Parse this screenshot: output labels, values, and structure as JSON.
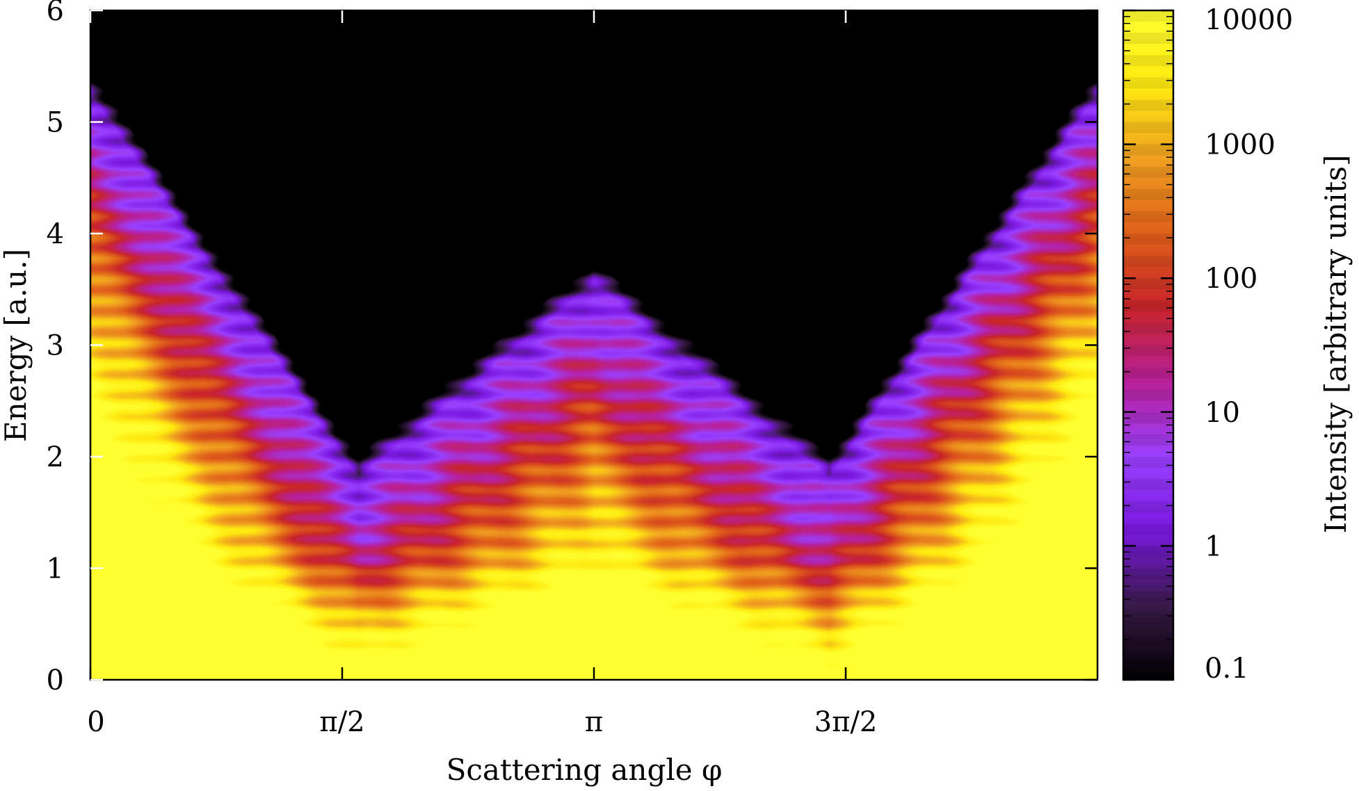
{
  "chart_data": {
    "type": "heatmap",
    "xlabel": "Scattering angle φ",
    "ylabel": "Energy [a.u.]",
    "colorbar_label": "Intensity [arbitrary units]",
    "xlim": [
      0,
      6.2832
    ],
    "ylim": [
      0,
      6
    ],
    "x_ticks": [
      {
        "value": 0,
        "label": "0"
      },
      {
        "value": 1.5708,
        "label": "π/2"
      },
      {
        "value": 3.1416,
        "label": "π"
      },
      {
        "value": 4.7124,
        "label": "3π/2"
      }
    ],
    "y_ticks": [
      {
        "value": 0,
        "label": "0"
      },
      {
        "value": 1,
        "label": "1"
      },
      {
        "value": 2,
        "label": "2"
      },
      {
        "value": 3,
        "label": "3"
      },
      {
        "value": 4,
        "label": "4"
      },
      {
        "value": 5,
        "label": "5"
      },
      {
        "value": 6,
        "label": "6"
      }
    ],
    "colorbar": {
      "scale": "log",
      "range": [
        0.1,
        10000
      ],
      "ticks": [
        {
          "value": 0.1,
          "label": "0.1"
        },
        {
          "value": 1,
          "label": "1"
        },
        {
          "value": 10,
          "label": "10"
        },
        {
          "value": 100,
          "label": "100"
        },
        {
          "value": 1000,
          "label": "1000"
        },
        {
          "value": 10000,
          "label": "10000"
        }
      ],
      "colormap_stops": [
        "#000000",
        "#3a1a4a",
        "#7a18e0",
        "#9a40ff",
        "#b8209a",
        "#c8242a",
        "#e0601a",
        "#f0a020",
        "#ffea10",
        "#ffff30"
      ]
    },
    "grid": false
  }
}
